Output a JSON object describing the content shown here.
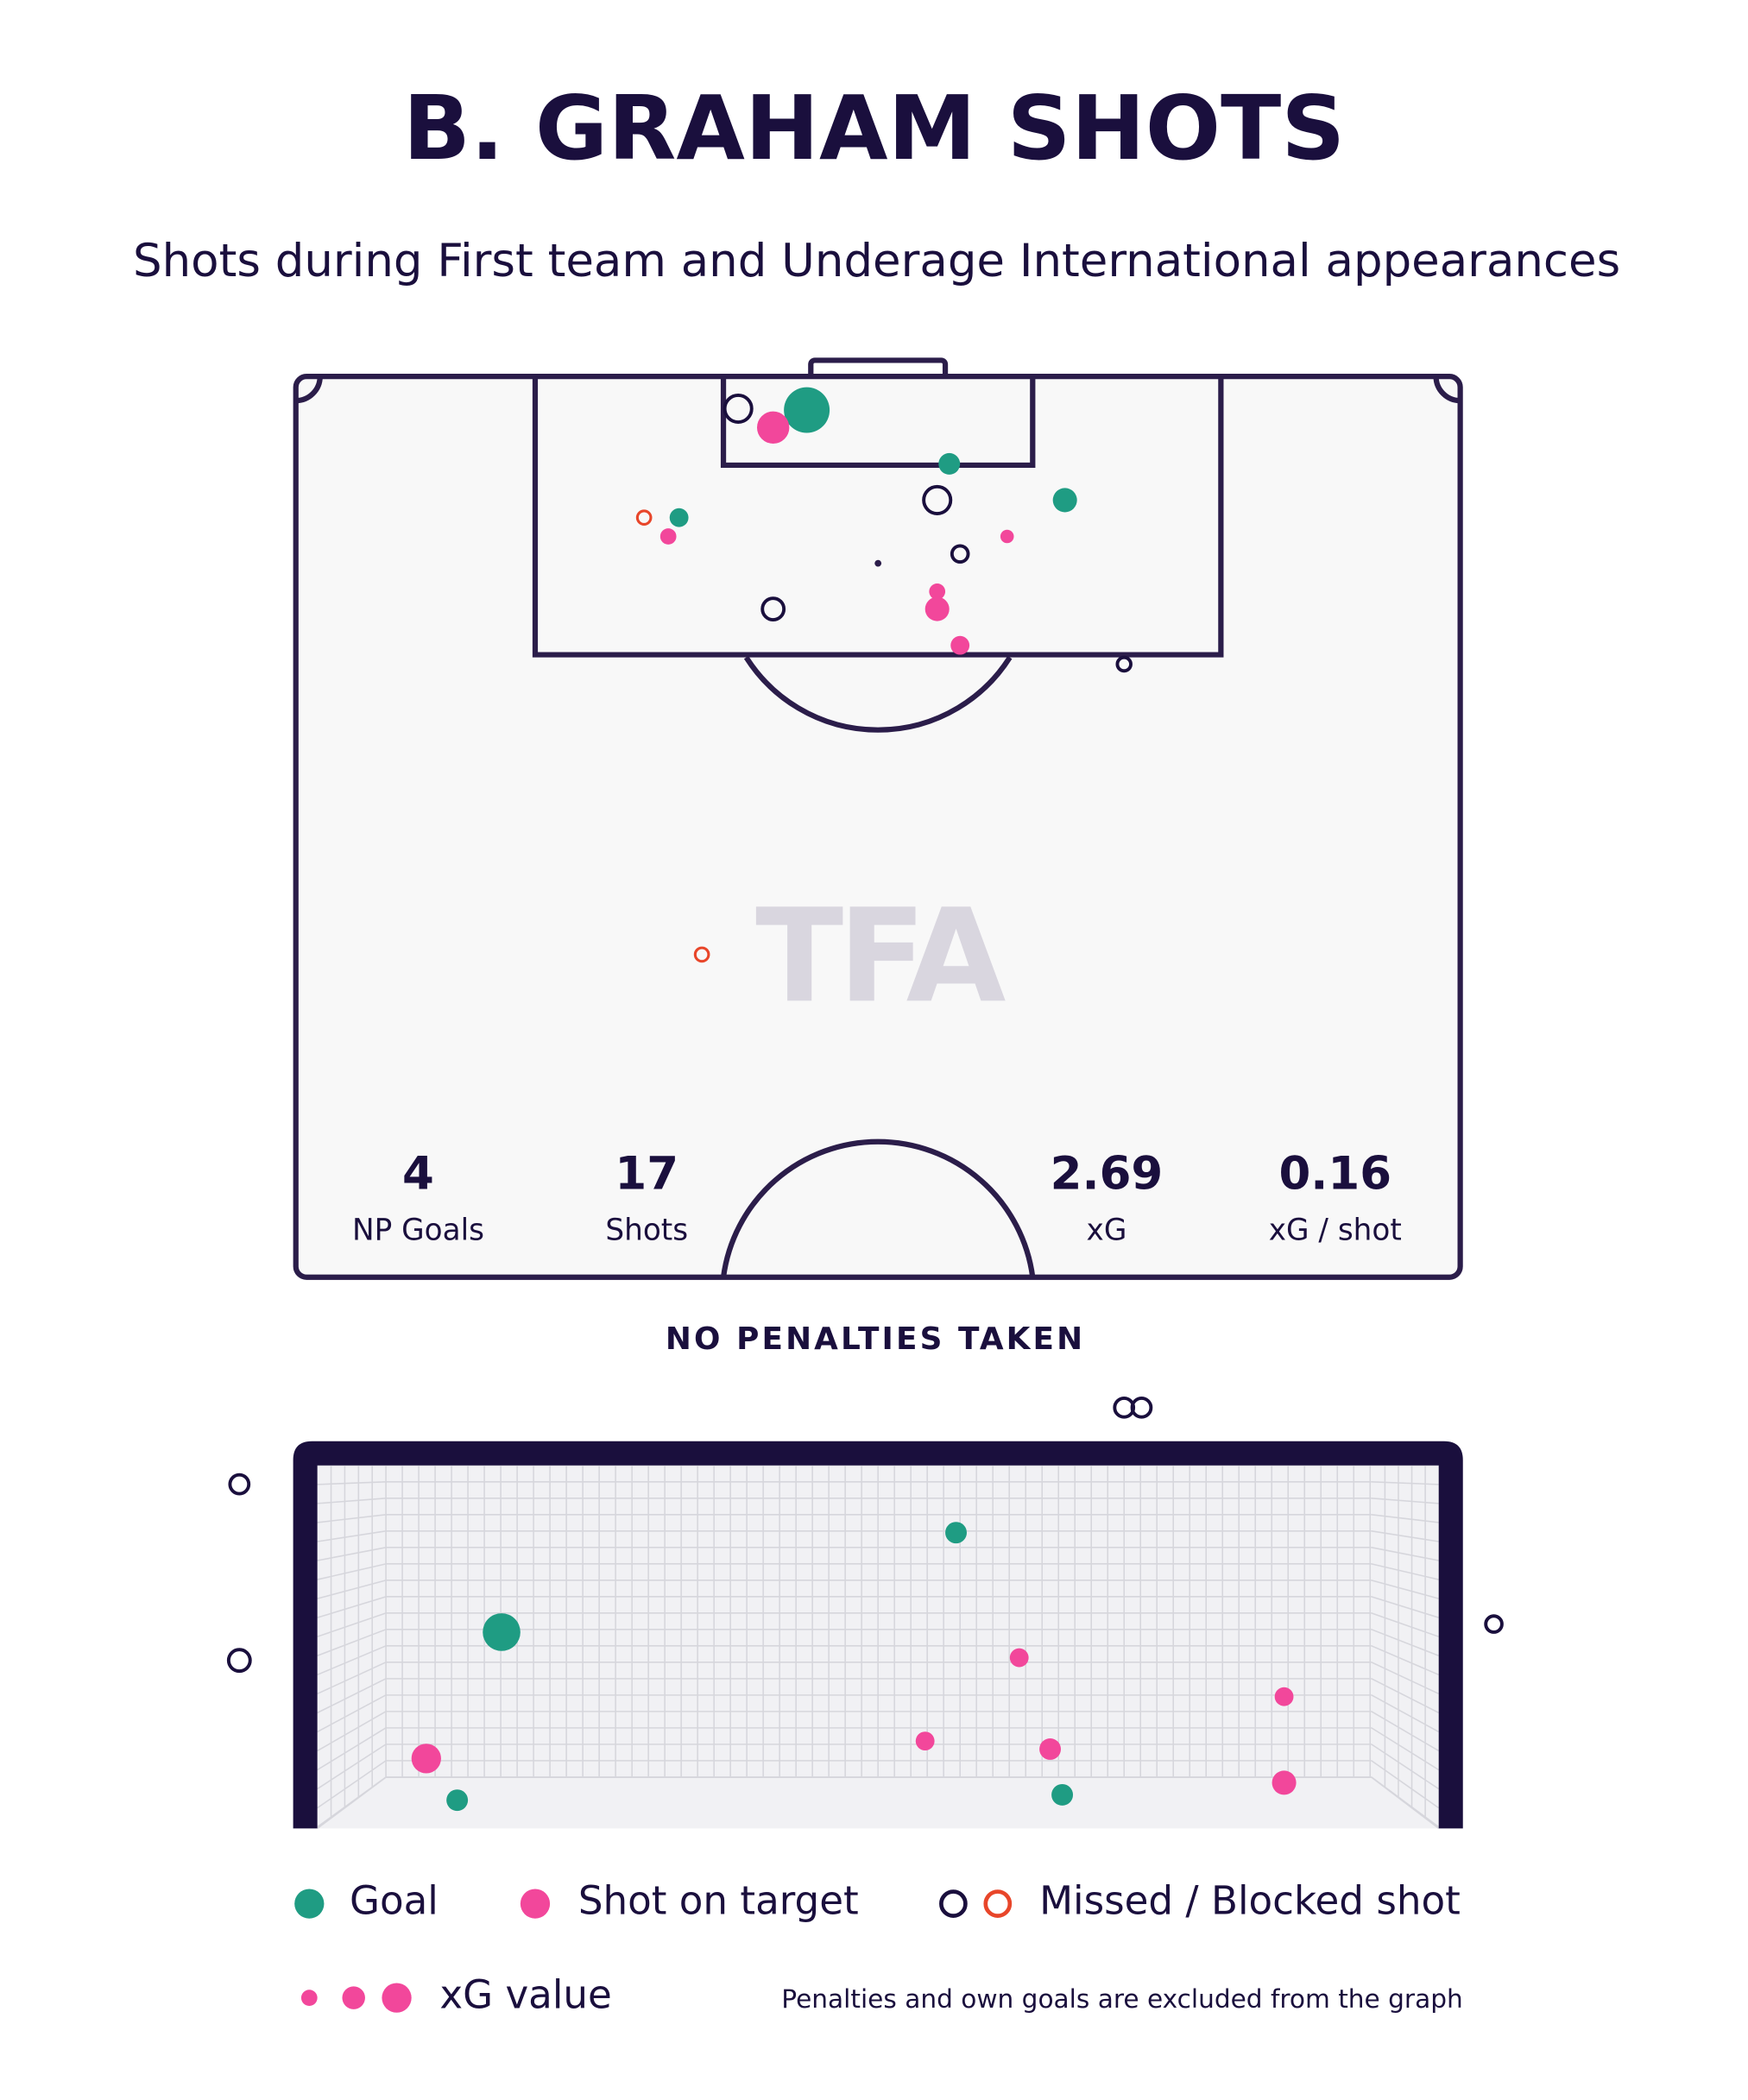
{
  "header": {
    "title": "B. GRAHAM SHOTS",
    "subtitle": "Shots during First team and Underage International appearances"
  },
  "watermark": "TFA",
  "stats": [
    {
      "value": 4,
      "label": "NP Goals"
    },
    {
      "value": 17,
      "label": "Shots"
    },
    {
      "value": 2.69,
      "label": "xG"
    },
    {
      "value": 0.16,
      "label": "xG / shot"
    }
  ],
  "penalties_note": "NO PENALTIES TAKEN",
  "legend": {
    "goal": "Goal",
    "on_target": "Shot on target",
    "missed": "Missed / Blocked shot",
    "xg": "xG value"
  },
  "footnote": "Penalties and own goals are excluded from the graph"
}
